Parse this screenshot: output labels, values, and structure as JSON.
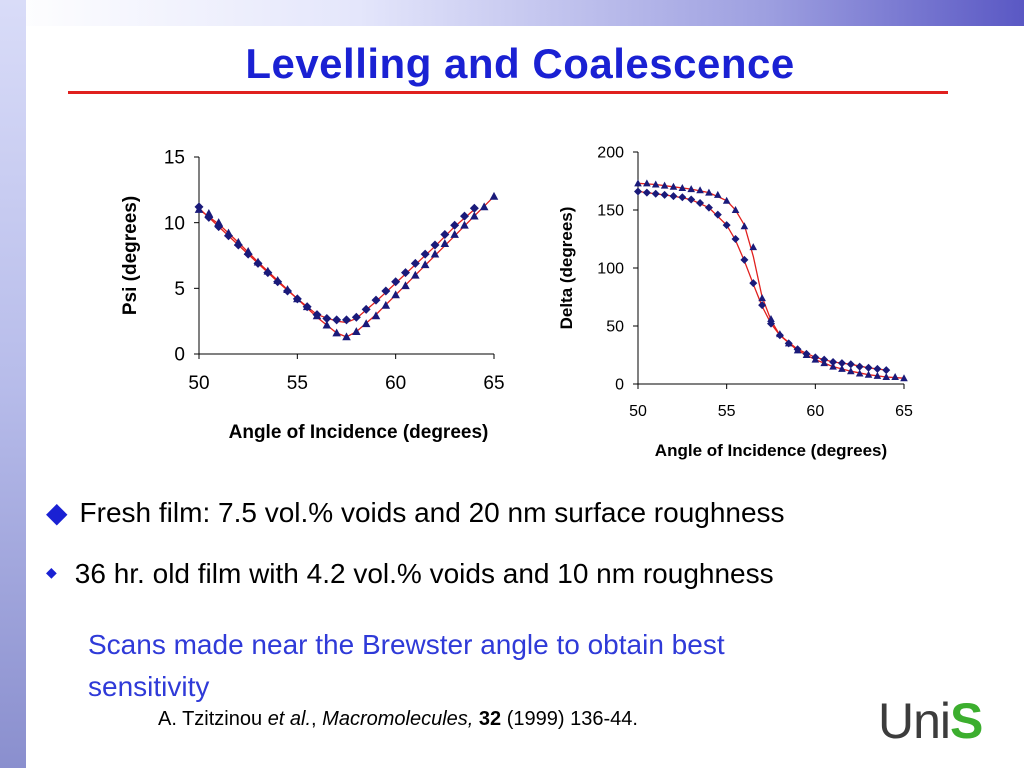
{
  "slide": {
    "title": "Levelling and Coalescence",
    "bullets": [
      {
        "text": "Fresh film:  7.5 vol.% voids and 20 nm surface roughness"
      },
      {
        "text": "36 hr. old film with 4.2 vol.% voids and 10 nm roughness"
      }
    ],
    "note": "Scans made near the Brewster angle to obtain best sensitivity",
    "citation": {
      "author": "A. Tzitzinou ",
      "etal": "et al.",
      "sep": ", ",
      "journal": "Macromolecules,",
      "volume": "32",
      "rest": " (1999) 136-44."
    },
    "logo": {
      "prefix": "Uni",
      "suffix": "S"
    }
  },
  "colors": {
    "title": "#1a21d3",
    "rule": "#e0201e",
    "note": "#2f3ad8",
    "marker": "#1a1a7a",
    "fit_line": "#e0201e",
    "logo_s": "#3cae2e"
  },
  "chart_data": [
    {
      "type": "scatter",
      "xlabel": "Angle of Incidence (degrees)",
      "ylabel": "Psi (degrees)",
      "xlim": [
        50,
        65
      ],
      "ylim": [
        0,
        15
      ],
      "xticks": [
        50,
        55,
        60,
        65
      ],
      "yticks": [
        0,
        5,
        10,
        15
      ],
      "grid": false,
      "series": [
        {
          "marker": "diamond",
          "x": [
            50,
            50.5,
            51,
            51.5,
            52,
            52.5,
            53,
            53.5,
            54,
            54.5,
            55,
            55.5,
            56,
            56.5,
            57,
            57.5,
            58,
            58.5,
            59,
            59.5,
            60,
            60.5,
            61,
            61.5,
            62,
            62.5,
            63,
            63.5,
            64
          ],
          "y": [
            11.2,
            10.4,
            9.7,
            9.0,
            8.3,
            7.6,
            6.9,
            6.2,
            5.5,
            4.8,
            4.2,
            3.6,
            3.0,
            2.7,
            2.6,
            2.6,
            2.8,
            3.4,
            4.1,
            4.8,
            5.5,
            6.2,
            6.9,
            7.6,
            8.3,
            9.1,
            9.8,
            10.5,
            11.1
          ]
        },
        {
          "marker": "triangle",
          "x": [
            50,
            50.5,
            51,
            51.5,
            52,
            52.5,
            53,
            53.5,
            54,
            54.5,
            55,
            55.5,
            56,
            56.5,
            57,
            57.5,
            58,
            58.5,
            59,
            59.5,
            60,
            60.5,
            61,
            61.5,
            62,
            62.5,
            63,
            63.5,
            64,
            64.5,
            65
          ],
          "y": [
            11.0,
            10.7,
            10.0,
            9.2,
            8.5,
            7.8,
            7.0,
            6.3,
            5.6,
            4.9,
            4.2,
            3.6,
            2.9,
            2.2,
            1.6,
            1.3,
            1.7,
            2.3,
            2.9,
            3.7,
            4.5,
            5.2,
            6.0,
            6.8,
            7.6,
            8.4,
            9.1,
            9.8,
            10.5,
            11.2,
            12.0
          ]
        }
      ],
      "fits": [
        {
          "x": [
            50,
            51,
            52,
            53,
            54,
            55,
            56,
            57,
            57.5,
            58,
            59,
            60,
            61,
            62,
            63,
            64
          ],
          "y": [
            11.1,
            9.7,
            8.3,
            6.9,
            5.5,
            4.2,
            3.0,
            2.5,
            2.4,
            2.7,
            4.0,
            5.4,
            6.8,
            8.2,
            9.7,
            11.0
          ]
        },
        {
          "x": [
            50,
            51,
            52,
            53,
            54,
            55,
            56,
            57,
            57.5,
            58,
            59,
            60,
            61,
            62,
            63,
            64,
            65
          ],
          "y": [
            11.0,
            9.9,
            8.5,
            7.0,
            5.6,
            4.2,
            2.8,
            1.6,
            1.3,
            1.7,
            3.0,
            4.5,
            6.0,
            7.5,
            9.0,
            10.5,
            12.0
          ]
        }
      ]
    },
    {
      "type": "scatter",
      "xlabel": "Angle of Incidence (degrees)",
      "ylabel": "Delta (degrees)",
      "xlim": [
        50,
        65
      ],
      "ylim": [
        0,
        200
      ],
      "xticks": [
        50,
        55,
        60,
        65
      ],
      "yticks": [
        0,
        50,
        100,
        150,
        200
      ],
      "grid": false,
      "series": [
        {
          "marker": "diamond",
          "x": [
            50,
            50.5,
            51,
            51.5,
            52,
            52.5,
            53,
            53.5,
            54,
            54.5,
            55,
            55.5,
            56,
            56.5,
            57,
            57.5,
            58,
            58.5,
            59,
            59.5,
            60,
            60.5,
            61,
            61.5,
            62,
            62.5,
            63,
            63.5,
            64
          ],
          "y": [
            166,
            165,
            164,
            163,
            162,
            161,
            159,
            156,
            152,
            146,
            137,
            125,
            107,
            87,
            68,
            52,
            42,
            35,
            30,
            26,
            23,
            21,
            19,
            18,
            17,
            15,
            14,
            13,
            12
          ]
        },
        {
          "marker": "triangle",
          "x": [
            50,
            50.5,
            51,
            51.5,
            52,
            52.5,
            53,
            53.5,
            54,
            54.5,
            55,
            55.5,
            56,
            56.5,
            57,
            57.5,
            58,
            58.5,
            59,
            59.5,
            60,
            60.5,
            61,
            61.5,
            62,
            62.5,
            63,
            63.5,
            64,
            64.5,
            65
          ],
          "y": [
            173,
            173,
            172,
            171,
            170,
            169,
            168,
            167,
            165,
            163,
            158,
            150,
            136,
            118,
            74,
            56,
            43,
            35,
            29,
            25,
            21,
            18,
            15,
            13,
            11,
            9,
            8,
            7,
            6,
            6,
            5
          ]
        }
      ],
      "fits": [
        {
          "x": [
            50,
            51,
            52,
            53,
            54,
            55,
            55.5,
            56,
            56.5,
            57,
            57.5,
            58,
            59,
            60,
            61,
            62,
            63,
            64
          ],
          "y": [
            166,
            164,
            162,
            159,
            152,
            137,
            124,
            106,
            86,
            67,
            52,
            42,
            30,
            23,
            19,
            17,
            14,
            12
          ]
        },
        {
          "x": [
            50,
            51,
            52,
            53,
            54,
            55,
            55.5,
            56,
            56.5,
            57,
            57.5,
            58,
            59,
            60,
            61,
            62,
            63,
            64,
            65
          ],
          "y": [
            173,
            172,
            170,
            168,
            165,
            158,
            150,
            137,
            110,
            75,
            55,
            42,
            29,
            21,
            15,
            11,
            8,
            6,
            5
          ]
        }
      ]
    }
  ]
}
